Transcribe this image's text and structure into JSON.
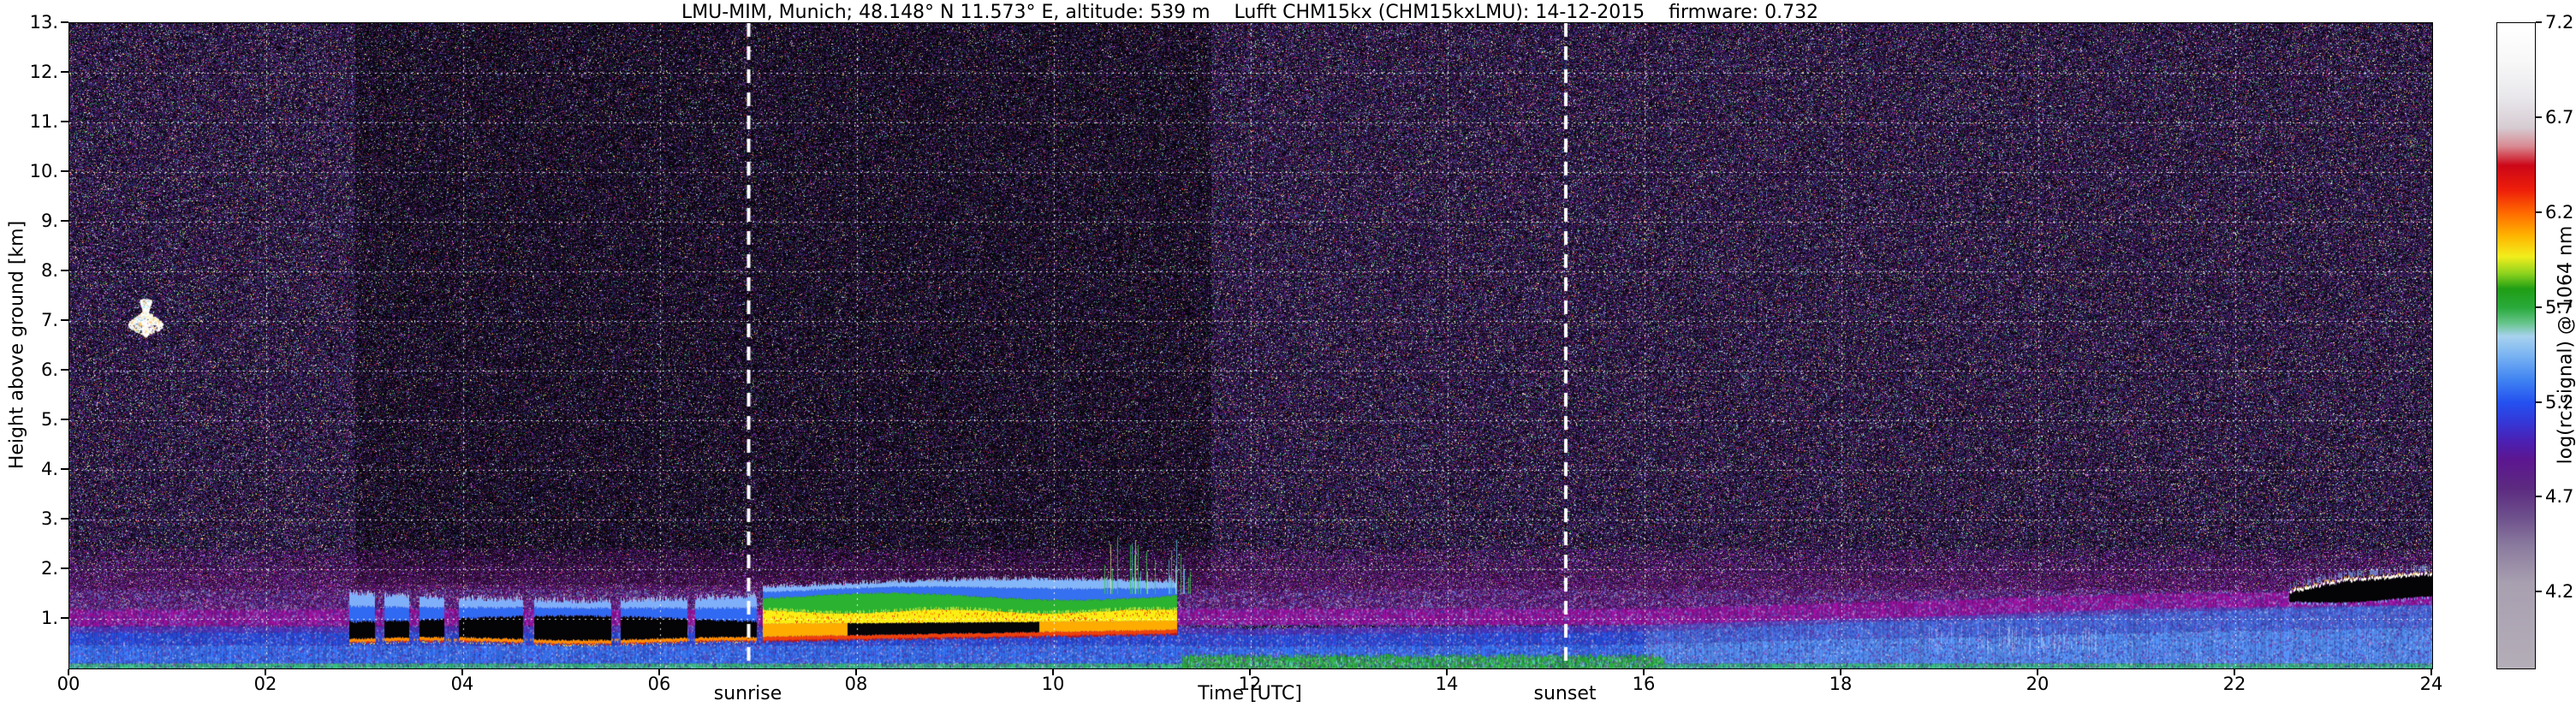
{
  "chart_data": {
    "type": "heatmap",
    "title": "LMU-MIM, Munich; 48.148° N 11.573° E, altitude: 539 m    Lufft CHM15kx (CHM15kxLMU): 14-12-2015    firmware: 0.732",
    "xlabel": "Time [UTC]",
    "ylabel": "Height above ground [km]",
    "xlim": [
      0,
      24
    ],
    "ylim": [
      0,
      13
    ],
    "grid": {
      "show": true,
      "style": "dotted",
      "color": "#ffffff"
    },
    "xticks": [
      {
        "value": 0,
        "label": "00"
      },
      {
        "value": 2,
        "label": "02"
      },
      {
        "value": 4,
        "label": "04"
      },
      {
        "value": 6,
        "label": "06"
      },
      {
        "value": 8,
        "label": "08"
      },
      {
        "value": 10,
        "label": "10"
      },
      {
        "value": 12,
        "label": "12"
      },
      {
        "value": 14,
        "label": "14"
      },
      {
        "value": 16,
        "label": "16"
      },
      {
        "value": 18,
        "label": "18"
      },
      {
        "value": 20,
        "label": "20"
      },
      {
        "value": 22,
        "label": "22"
      },
      {
        "value": 24,
        "label": "24"
      }
    ],
    "yticks": [
      {
        "value": 1,
        "label": "1."
      },
      {
        "value": 2,
        "label": "2."
      },
      {
        "value": 3,
        "label": "3."
      },
      {
        "value": 4,
        "label": "4."
      },
      {
        "value": 5,
        "label": "5."
      },
      {
        "value": 6,
        "label": "6."
      },
      {
        "value": 7,
        "label": "7."
      },
      {
        "value": 8,
        "label": "8."
      },
      {
        "value": 9,
        "label": "9."
      },
      {
        "value": 10,
        "label": "10."
      },
      {
        "value": 11,
        "label": "11."
      },
      {
        "value": 12,
        "label": "12."
      },
      {
        "value": 13,
        "label": "13."
      }
    ],
    "annotations": [
      {
        "type": "vline",
        "label": "sunrise",
        "time_utc": 6.9,
        "style": "dashed",
        "color": "#ffffff"
      },
      {
        "type": "vline",
        "label": "sunset",
        "time_utc": 15.2,
        "style": "dashed",
        "color": "#ffffff"
      }
    ],
    "colorbar": {
      "label": "log(rc-signal) @ 1064 nm",
      "ticks": [
        "7.2",
        "6.7",
        "6.2",
        "5.7",
        "5.2",
        "4.7",
        "4.2"
      ],
      "tick_values": [
        7.2,
        6.7,
        6.2,
        5.7,
        5.2,
        4.7,
        4.2
      ],
      "range": [
        3.8,
        7.2
      ],
      "stops": [
        {
          "v": 3.8,
          "c": "#b4aeb8"
        },
        {
          "v": 4.25,
          "c": "#a89fb0"
        },
        {
          "v": 4.45,
          "c": "#8a7a9e"
        },
        {
          "v": 4.6,
          "c": "#6d4f8c"
        },
        {
          "v": 4.75,
          "c": "#5c2a80"
        },
        {
          "v": 4.9,
          "c": "#5c1690"
        },
        {
          "v": 5.0,
          "c": "#4a20b4"
        },
        {
          "v": 5.1,
          "c": "#3438d8"
        },
        {
          "v": 5.2,
          "c": "#2450f0"
        },
        {
          "v": 5.32,
          "c": "#3f83f2"
        },
        {
          "v": 5.45,
          "c": "#7ab4f2"
        },
        {
          "v": 5.55,
          "c": "#a8d2ee"
        },
        {
          "v": 5.62,
          "c": "#66c48a"
        },
        {
          "v": 5.7,
          "c": "#2aaa3c"
        },
        {
          "v": 5.8,
          "c": "#1f9e14"
        },
        {
          "v": 5.88,
          "c": "#8cd21e"
        },
        {
          "v": 5.97,
          "c": "#f2ee1c"
        },
        {
          "v": 6.08,
          "c": "#ffb400"
        },
        {
          "v": 6.2,
          "c": "#ff6a00"
        },
        {
          "v": 6.32,
          "c": "#ee1e0a"
        },
        {
          "v": 6.45,
          "c": "#cc0618"
        },
        {
          "v": 6.55,
          "c": "#d88890"
        },
        {
          "v": 6.65,
          "c": "#d6ccd2"
        },
        {
          "v": 6.8,
          "c": "#e8e6ea"
        },
        {
          "v": 7.0,
          "c": "#f8f8f8"
        },
        {
          "v": 7.2,
          "c": "#ffffff"
        }
      ]
    },
    "features": [
      {
        "name": "background-noise",
        "t": [
          0,
          24
        ],
        "km": [
          0,
          13
        ],
        "signal": "4.2-5.0 random speckle",
        "palette": [
          "#0a0510",
          "#24103a",
          "#3e2062",
          "#5c3888"
        ]
      },
      {
        "name": "attenuated-region",
        "t": [
          2.9,
          11.6
        ],
        "km": [
          1.7,
          13
        ],
        "note": "darker noise above optically thick low cloud"
      },
      {
        "name": "residual-layer-band",
        "signal": 4.8,
        "color": "#960f96",
        "km_profile": [
          [
            0,
            0.85,
            1.18
          ],
          [
            16,
            0.88,
            1.2
          ],
          [
            19,
            1.05,
            1.38
          ],
          [
            21,
            1.2,
            1.5
          ],
          [
            24,
            1.28,
            1.58
          ]
        ]
      },
      {
        "name": "surface-aerosol-layer",
        "signal": "5.1-5.5",
        "color": "#2a5fe8",
        "km_top_profile": [
          [
            0,
            0.85
          ],
          [
            11,
            0.85
          ],
          [
            12,
            0.8
          ],
          [
            16,
            0.88
          ],
          [
            18,
            1.08
          ],
          [
            20,
            1.22
          ],
          [
            22,
            1.38
          ],
          [
            24,
            1.52
          ]
        ]
      },
      {
        "name": "surface-green-layer",
        "t": [
          11.3,
          16.2
        ],
        "km": [
          0,
          0.3
        ],
        "signal": 5.7,
        "color": "#2aa63c"
      },
      {
        "name": "night-stratus",
        "t": [
          2.85,
          6.98
        ],
        "base_km": 0.58,
        "black_top_km": 1.0,
        "blue_top_km": 1.45,
        "gaps": [
          [
            3.1,
            3.2
          ],
          [
            3.45,
            3.55
          ],
          [
            3.8,
            3.95
          ],
          [
            4.6,
            4.72
          ],
          [
            5.5,
            5.6
          ],
          [
            6.27,
            6.35
          ]
        ],
        "appearance": "saturated black core, blue upper fringe, orange cloud-base line"
      },
      {
        "name": "morning-stratus",
        "t": [
          7.05,
          11.25
        ],
        "base_km": 0.62,
        "yellow_band_km": [
          0.9,
          1.15
        ],
        "green_band_km": [
          1.15,
          1.45
        ],
        "blue_top_km": 1.7,
        "black_patch_t": [
          7.9,
          9.85
        ],
        "appearance": "strong yellow/green return with red speckles and black saturated patches"
      },
      {
        "name": "cloud-edge-streaks",
        "t": [
          10.5,
          11.45
        ],
        "km_top": [
          1.8,
          2.7
        ],
        "color": "green-cyan vertical streaks"
      },
      {
        "name": "high-cloud-patch",
        "t": [
          0.62,
          0.92
        ],
        "km": [
          6.7,
          7.45
        ],
        "color": "#ffffff"
      },
      {
        "name": "evening-stratus",
        "t": [
          22.55,
          24
        ],
        "base_km": 1.32,
        "top_km": 1.75,
        "appearance": "black saturated band with bright white/yellow top fringe in light-blue layer"
      }
    ]
  }
}
